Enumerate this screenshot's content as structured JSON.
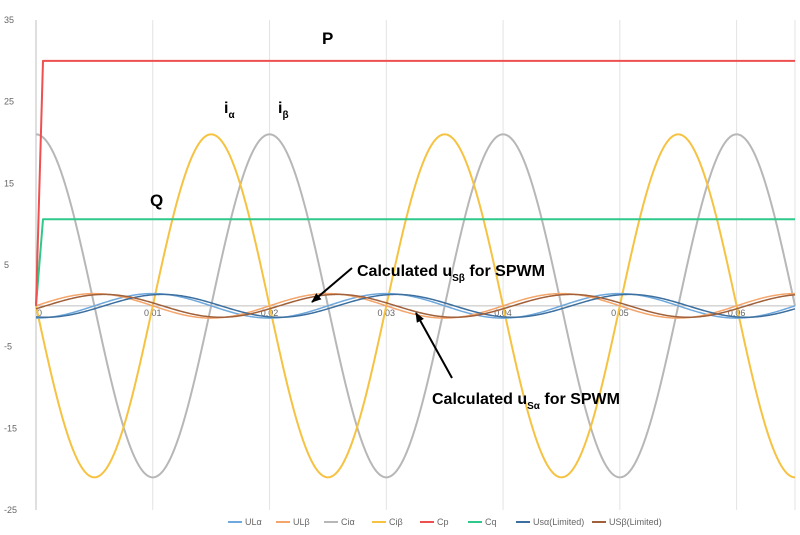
{
  "chart_data": {
    "type": "line",
    "title": "",
    "xlabel": "",
    "ylabel": "",
    "xlim": [
      0,
      0.065
    ],
    "ylim": [
      -25,
      35
    ],
    "x_ticks": [
      0,
      0.01,
      0.02,
      0.03,
      0.04,
      0.05,
      0.06
    ],
    "x_tick_labels": [
      "0",
      "0.01",
      "0.02",
      "0.03",
      "0.04",
      "0.05",
      "0.06"
    ],
    "y_ticks": [
      -25,
      -15,
      -5,
      5,
      15,
      25,
      35
    ],
    "y_tick_labels": [
      "-25",
      "-15",
      "-5",
      "5",
      "15",
      "25",
      "35"
    ],
    "grid": "vertical",
    "legend_position": "bottom",
    "frequency_hz": 50,
    "series": [
      {
        "name": "ULα",
        "color": "#6fa8dc",
        "amplitude": 1.5,
        "phase_deg": -90,
        "offset": 0
      },
      {
        "name": "ULβ",
        "color": "#f4a56b",
        "amplitude": 1.5,
        "phase_deg": 0,
        "offset": 0
      },
      {
        "name": "Ciα",
        "color": "#b7b7b7",
        "amplitude": 21,
        "phase_deg": 90,
        "offset": 0
      },
      {
        "name": "Ciβ",
        "color": "#f6c242",
        "amplitude": 21,
        "phase_deg": 180,
        "offset": 0
      },
      {
        "name": "Cp",
        "color": "#ee5050",
        "step_value": 30,
        "rise_time": 0.0006
      },
      {
        "name": "Cq",
        "color": "#2ec98a",
        "step_value": 10.6,
        "rise_time": 0.0006
      },
      {
        "name": "Usα(Limited)",
        "color": "#3d6f9e",
        "amplitude": 1.4,
        "phase_deg": -105,
        "offset": 0
      },
      {
        "name": "USβ(Limited)",
        "color": "#a0603a",
        "amplitude": 1.4,
        "phase_deg": -15,
        "offset": 0
      }
    ],
    "annotations": {
      "P": "P",
      "Q": "Q",
      "i_alpha": "i",
      "i_alpha_sub": "α",
      "i_beta": "i",
      "i_beta_sub": "β",
      "usb_label_pre": "Calculated u",
      "usb_label_sub": "Sβ",
      "usb_label_post": " for SPWM",
      "usa_label_pre": "Calculated u",
      "usa_label_sub": "Sα",
      "usa_label_post": " for SPWM"
    }
  }
}
